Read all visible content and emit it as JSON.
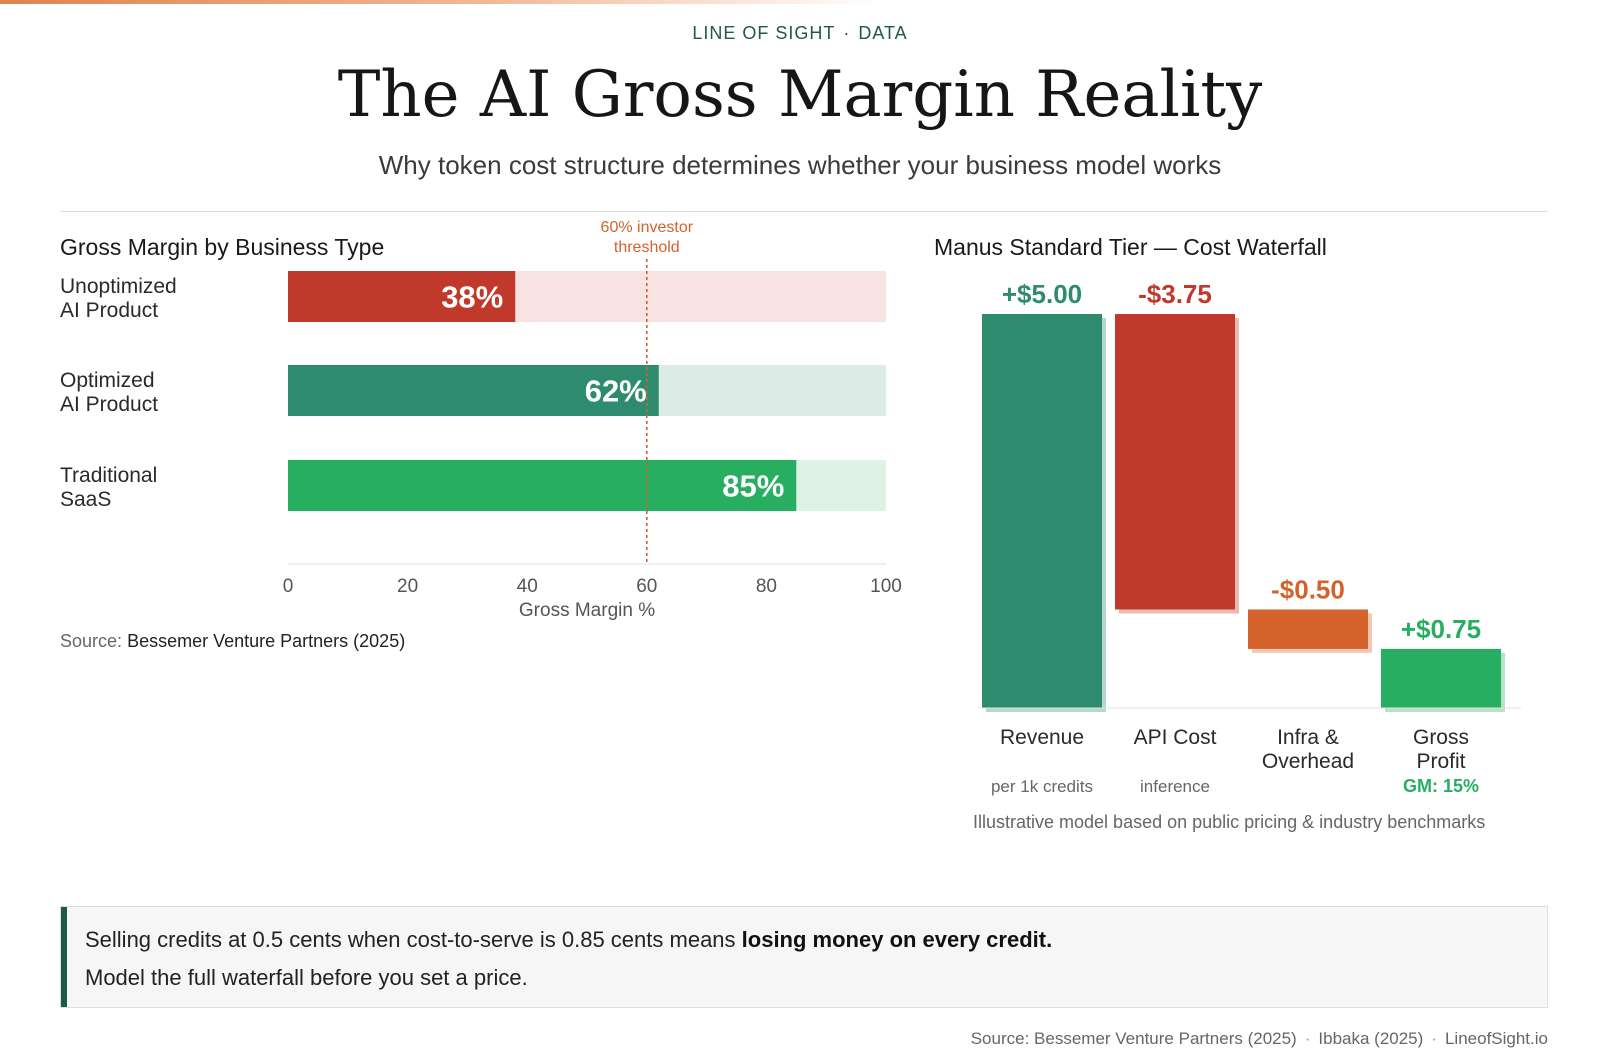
{
  "header": {
    "kicker_left": "LINE OF SIGHT",
    "kicker_sep": "·",
    "kicker_right": "DATA",
    "title": "The AI Gross Margin Reality",
    "subtitle": "Why token cost structure determines whether your business model works"
  },
  "colors": {
    "red": "#c0392b",
    "dark_green": "#2e8b6e",
    "green": "#27ae60",
    "orange": "#d4622b",
    "threshold": "#d4622b",
    "brand": "#1f5a45"
  },
  "chart_data": [
    {
      "type": "bar",
      "orientation": "horizontal",
      "title": "Gross Margin by Business Type",
      "categories": [
        [
          "Unoptimized",
          "AI Product"
        ],
        [
          "Optimized",
          "AI Product"
        ],
        [
          "Traditional",
          "SaaS"
        ]
      ],
      "values": [
        38,
        62,
        85
      ],
      "value_labels": [
        "38%",
        "62%",
        "85%"
      ],
      "bar_colors": [
        "#c0392b",
        "#2e8b6e",
        "#27ae60"
      ],
      "track_colors": [
        "#f7e4e2",
        "#dcebe5",
        "#def2e6"
      ],
      "xlabel": "Gross Margin %",
      "xlim": [
        0,
        100
      ],
      "xticks": [
        0,
        20,
        40,
        60,
        80,
        100
      ],
      "reference_line": {
        "value": 60,
        "label": [
          "60% investor",
          "threshold"
        ]
      },
      "grid": false
    },
    {
      "type": "bar",
      "subtype": "waterfall",
      "title": "Manus Standard Tier — Cost Waterfall",
      "categories": [
        [
          "Revenue"
        ],
        [
          "API Cost"
        ],
        [
          "Infra &",
          "Overhead"
        ],
        [
          "Gross",
          "Profit"
        ]
      ],
      "sublabels": [
        "per 1k credits",
        "inference",
        "",
        "GM: 15%"
      ],
      "values": [
        5.0,
        -3.75,
        -0.5,
        0.75
      ],
      "value_labels": [
        "+$5.00",
        "-$3.75",
        "-$0.50",
        "+$0.75"
      ],
      "bar_colors": [
        "#2e8b6e",
        "#c0392b",
        "#d4622b",
        "#27ae60"
      ],
      "label_colors": [
        "#2e8b6e",
        "#c0392b",
        "#d4622b",
        "#27ae60"
      ],
      "ylim": [
        0,
        5
      ],
      "grid": false
    }
  ],
  "left_source": {
    "prefix": "Source:",
    "name": "Bessemer Venture Partners (2025)"
  },
  "right_note": "Illustrative model based on public pricing & industry benchmarks",
  "callout": {
    "line1_pre": "Selling credits at 0.5 cents when cost-to-serve is 0.85 cents means ",
    "line1_bold": "losing money on every credit.",
    "line2": "Model the full waterfall before you set a price."
  },
  "footer": {
    "items": [
      "Source: Bessemer Venture Partners (2025)",
      "Ibbaka (2025)",
      "LineofSight.io"
    ],
    "sep": "·"
  }
}
